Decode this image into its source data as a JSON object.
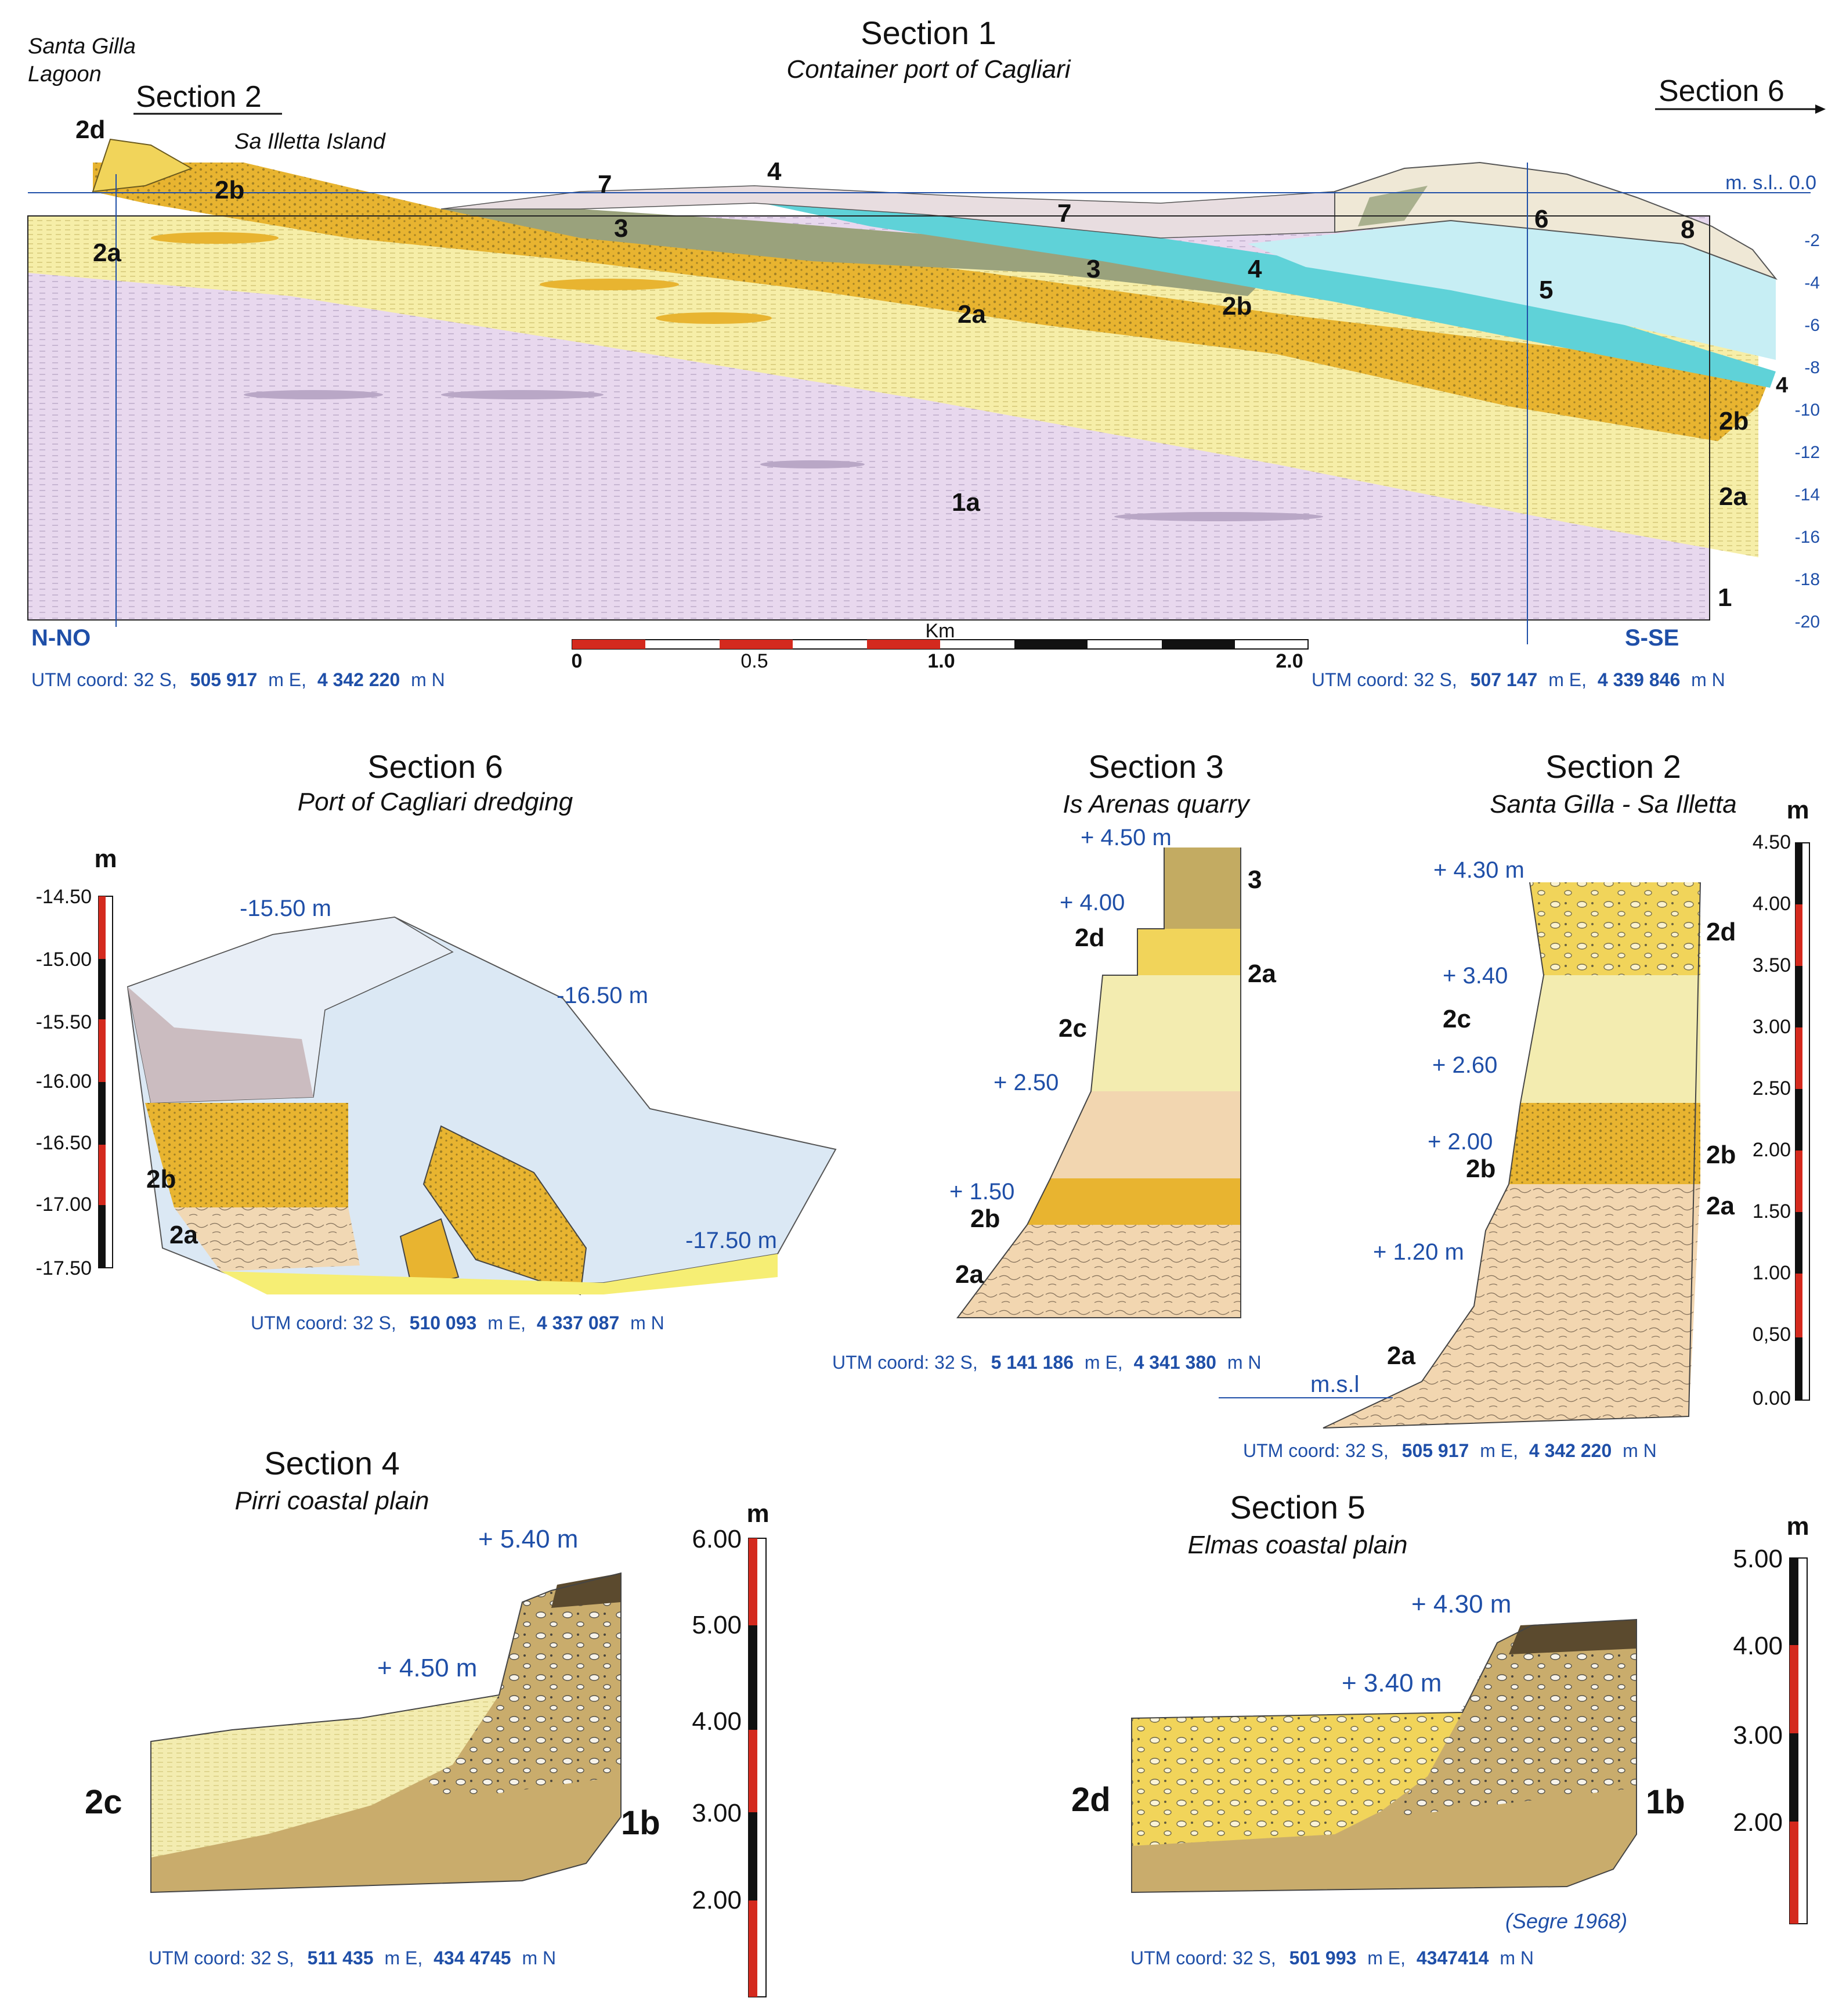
{
  "section1": {
    "title": "Section 1",
    "subtitle": "Container port of Cagliari",
    "place_lagoon_line1": "Santa Gilla",
    "place_lagoon_line2": "Lagoon",
    "place_island": "Sa Illetta Island",
    "link_section2": "Section 2",
    "link_section6": "Section 6",
    "msl_label": "m. s.l.. 0.0",
    "depth_ticks": [
      "-2",
      "-4",
      "-6",
      "-8",
      "-10",
      "-12",
      "-14",
      "-16",
      "-18",
      "-20"
    ],
    "units": {
      "u2d": "2d",
      "u2b": "2b",
      "u2a_left": "2a",
      "u7a": "7",
      "u4a": "4",
      "u3a": "3",
      "u7b": "7",
      "u3b": "3",
      "u4b": "4",
      "u2b_mid": "2b",
      "u2a_mid": "2a",
      "u6": "6",
      "u5": "5",
      "u8": "8",
      "u4_right": "4",
      "u2b_right": "2b",
      "u2a_right": "2a",
      "u1a": "1a",
      "u1": "1"
    },
    "dir_left": "N-NO",
    "dir_right": "S-SE",
    "scale_unit": "Km",
    "scale_labels": [
      "0",
      "0.5",
      "1.0",
      "2.0"
    ],
    "coord_left": {
      "prefix": "UTM coord: 32 S,",
      "east": "505 917",
      "east_unit": "m E,",
      "north": "4 342 220",
      "north_unit": "m N"
    },
    "coord_right": {
      "prefix": "UTM coord: 32 S,",
      "east": "507 147",
      "east_unit": "m E,",
      "north": "4 339 846",
      "north_unit": "m N"
    }
  },
  "section6": {
    "title": "Section 6",
    "subtitle": "Port of Cagliari dredging",
    "unit": "m",
    "ticks": [
      "-14.50",
      "-15.00",
      "-15.50",
      "-16.00",
      "-16.50",
      "-17.00",
      "-17.50"
    ],
    "depths": [
      "-15.50 m",
      "-16.50 m",
      "-17.50 m"
    ],
    "units": {
      "u2b": "2b",
      "u2a": "2a"
    },
    "coord": {
      "prefix": "UTM coord: 32 S,",
      "east": "510 093",
      "east_unit": "m E,",
      "north": "4 337 087",
      "north_unit": "m N"
    }
  },
  "section3": {
    "title": "Section 3",
    "subtitle": "Is Arenas quarry",
    "heights": [
      "+ 4.50 m",
      "+ 4.00",
      "+ 2.50",
      "+ 1.50"
    ],
    "units": {
      "u3": "3",
      "u2d": "2d",
      "u2a_top": "2a",
      "u2c": "2c",
      "u2b": "2b",
      "u2a_bottom": "2a"
    },
    "coord": {
      "prefix": "UTM coord: 32 S,",
      "east": "5 141 186",
      "east_unit": "m E,",
      "north": "4 341 380",
      "north_unit": "m N"
    }
  },
  "section2": {
    "title": "Section 2",
    "subtitle": "Santa Gilla - Sa Illetta",
    "unit": "m",
    "ticks": [
      "4.50",
      "4.00",
      "3.50",
      "3.00",
      "2.50",
      "2.00",
      "1.50",
      "1.00",
      "0,50",
      "0.00"
    ],
    "heights": [
      "+ 4.30 m",
      "+ 3.40",
      "+ 2.60",
      "+ 2.00",
      "+ 1.20 m"
    ],
    "msl": "m.s.l",
    "units": {
      "u2d": "2d",
      "u2c": "2c",
      "u2b_left": "2b",
      "u2b_right": "2b",
      "u2a_right": "2a",
      "u2a_bottom": "2a"
    },
    "coord": {
      "prefix": "UTM coord: 32 S,",
      "east": "505 917",
      "east_unit": "m E,",
      "north": "4 342 220",
      "north_unit": "m N"
    }
  },
  "section4": {
    "title": "Section 4",
    "subtitle": "Pirri coastal plain",
    "unit": "m",
    "ticks": [
      "6.00",
      "5.00",
      "4.00",
      "3.00",
      "2.00"
    ],
    "heights": [
      "+ 5.40 m",
      "+ 4.50 m"
    ],
    "units": {
      "u2c": "2c",
      "u1b": "1b"
    },
    "coord": {
      "prefix": "UTM coord: 32 S,",
      "east": "511 435",
      "east_unit": "m E,",
      "north": "434 4745",
      "north_unit": "m N"
    }
  },
  "section5": {
    "title": "Section 5",
    "subtitle": "Elmas coastal plain",
    "unit": "m",
    "ticks": [
      "5.00",
      "4.00",
      "3.00",
      "2.00"
    ],
    "heights": [
      "+ 4.30 m",
      "+ 3.40 m"
    ],
    "units": {
      "u2d": "2d",
      "u1b": "1b"
    },
    "note": "(Segre 1968)",
    "coord": {
      "prefix": "UTM coord: 32 S,",
      "east": "501 993",
      "east_unit": "m E,",
      "north": "4347414",
      "north_unit": "m N"
    }
  },
  "colors": {
    "unit1": "#e8d8ee",
    "unit2a": "#f6eea8",
    "unit2b": "#e8b430",
    "unit2c": "#f3ecb0",
    "unit2d": "#f1d45a",
    "unit3": "#9aa27c",
    "unit4": "#5fd2d8",
    "unit5": "#c7eef4",
    "unit6": "#efe8d6",
    "unit7": "#e8dde0",
    "unit1b": "#c9ac6c",
    "dredge_blue": "#dbe8f4",
    "scale_red": "#d42a1e",
    "scale_black": "#111111",
    "label_blue": "#1f4fa8"
  }
}
